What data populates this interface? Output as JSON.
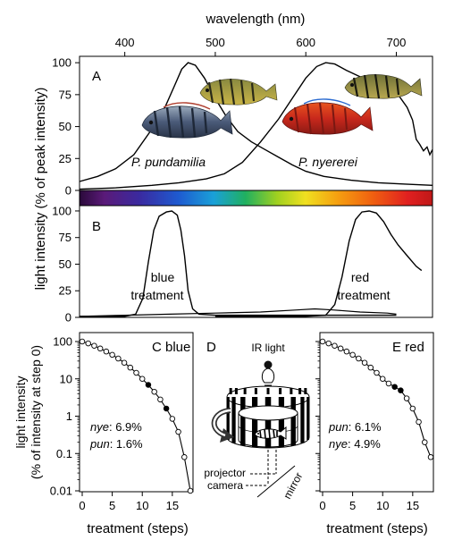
{
  "chart_data": [
    {
      "id": "A",
      "type": "line",
      "panel_label": "A",
      "xlabel": "wavelength (nm)",
      "xlim": [
        350,
        740
      ],
      "x_ticks": [
        400,
        500,
        600,
        700
      ],
      "ylim": [
        0,
        105
      ],
      "y_ticks": [
        0,
        25,
        50,
        75,
        100
      ],
      "series": [
        {
          "name": "P. pundamilia",
          "points": [
            [
              350,
              7
            ],
            [
              370,
              11
            ],
            [
              390,
              17
            ],
            [
              410,
              28
            ],
            [
              430,
              48
            ],
            [
              445,
              66
            ],
            [
              455,
              82
            ],
            [
              463,
              95
            ],
            [
              470,
              100
            ],
            [
              478,
              98
            ],
            [
              488,
              88
            ],
            [
              500,
              72
            ],
            [
              512,
              58
            ],
            [
              525,
              46
            ],
            [
              540,
              38
            ],
            [
              555,
              32
            ],
            [
              570,
              26
            ],
            [
              585,
              20
            ],
            [
              600,
              15
            ],
            [
              620,
              11
            ],
            [
              650,
              8
            ],
            [
              680,
              6
            ],
            [
              710,
              5
            ],
            [
              740,
              4
            ]
          ]
        },
        {
          "name": "P. nyererei",
          "points": [
            [
              350,
              1
            ],
            [
              390,
              2
            ],
            [
              430,
              4
            ],
            [
              460,
              6
            ],
            [
              490,
              9
            ],
            [
              510,
              13
            ],
            [
              530,
              22
            ],
            [
              550,
              38
            ],
            [
              570,
              56
            ],
            [
              585,
              72
            ],
            [
              600,
              88
            ],
            [
              612,
              97
            ],
            [
              622,
              100
            ],
            [
              632,
              99
            ],
            [
              645,
              94
            ],
            [
              660,
              89
            ],
            [
              675,
              84
            ],
            [
              690,
              79
            ],
            [
              703,
              74
            ],
            [
              712,
              65
            ],
            [
              718,
              55
            ],
            [
              722,
              40
            ],
            [
              726,
              36
            ],
            [
              730,
              31
            ],
            [
              734,
              34
            ],
            [
              737,
              28
            ],
            [
              740,
              32
            ]
          ]
        }
      ]
    },
    {
      "id": "B",
      "type": "line",
      "panel_label": "B",
      "ylim": [
        0,
        105
      ],
      "y_ticks": [
        0,
        25,
        50,
        75,
        100
      ],
      "series": [
        {
          "name": "blue treatment",
          "points": [
            [
              350,
              1
            ],
            [
              400,
              1
            ],
            [
              412,
              3
            ],
            [
              420,
              18
            ],
            [
              426,
              52
            ],
            [
              432,
              82
            ],
            [
              438,
              95
            ],
            [
              446,
              99
            ],
            [
              452,
              100
            ],
            [
              458,
              96
            ],
            [
              462,
              82
            ],
            [
              466,
              58
            ],
            [
              470,
              25
            ],
            [
              475,
              8
            ],
            [
              482,
              3
            ],
            [
              500,
              2
            ],
            [
              540,
              2
            ],
            [
              600,
              2
            ],
            [
              650,
              2
            ],
            [
              700,
              2
            ]
          ]
        },
        {
          "name": "red treatment",
          "points": [
            [
              500,
              1
            ],
            [
              560,
              1
            ],
            [
              600,
              1
            ],
            [
              622,
              2
            ],
            [
              632,
              12
            ],
            [
              640,
              38
            ],
            [
              648,
              72
            ],
            [
              655,
              92
            ],
            [
              662,
              99
            ],
            [
              670,
              100
            ],
            [
              678,
              98
            ],
            [
              686,
              90
            ],
            [
              694,
              78
            ],
            [
              702,
              68
            ],
            [
              712,
              58
            ],
            [
              722,
              48
            ],
            [
              728,
              44
            ]
          ]
        },
        {
          "name": "",
          "points": [
            [
              350,
              1
            ],
            [
              400,
              2
            ],
            [
              450,
              3
            ],
            [
              500,
              4
            ],
            [
              550,
              5
            ],
            [
              590,
              7
            ],
            [
              610,
              8
            ],
            [
              630,
              7
            ],
            [
              660,
              5
            ],
            [
              690,
              4
            ],
            [
              700,
              3
            ]
          ]
        }
      ],
      "annotations": [
        "blue",
        "treatment",
        "red",
        "treatment"
      ]
    },
    {
      "id": "C",
      "type": "line",
      "panel_label": "C blue",
      "xlabel": "treatment (steps)",
      "xlim": [
        0,
        18
      ],
      "x_ticks": [
        0,
        5,
        10,
        15
      ],
      "ylim": [
        0.01,
        100
      ],
      "y_scale": "log",
      "y_ticks": [
        "100",
        "10",
        "1",
        "0.1",
        "0.01"
      ],
      "values": [
        100,
        89,
        77,
        65,
        54,
        44,
        35,
        27,
        20,
        14.5,
        10,
        6.9,
        4.5,
        2.8,
        1.6,
        0.85,
        0.38,
        0.08,
        0.01
      ],
      "filled_steps": [
        11,
        14
      ],
      "legend": [
        {
          "species": "nye",
          "value": "6.9%"
        },
        {
          "species": "pun",
          "value": "1.6%"
        }
      ]
    },
    {
      "id": "E",
      "type": "line",
      "panel_label": "E red",
      "xlabel": "treatment (steps)",
      "xlim": [
        0,
        18
      ],
      "x_ticks": [
        0,
        5,
        10,
        15
      ],
      "ylim": [
        0.01,
        100
      ],
      "y_scale": "log",
      "values": [
        100,
        89,
        77,
        65,
        54,
        44,
        35,
        27,
        20,
        14.5,
        10,
        7.5,
        6.1,
        4.9,
        3.0,
        1.6,
        0.7,
        0.2,
        0.08
      ],
      "filled_steps": [
        12,
        13
      ],
      "legend": [
        {
          "species": "pun",
          "value": "6.1%"
        },
        {
          "species": "nye",
          "value": "4.9%"
        }
      ]
    }
  ],
  "labels": {
    "top_axis": "wavelength (nm)",
    "ylabel_AB": "light intensity (% of peak intensity)",
    "ylabel_CE_line1": "light intensity",
    "ylabel_CE_line2": "(% of intensity at step 0)",
    "species_pun": "P. pundamilia",
    "species_nye": "P. nyererei",
    "blue_line1": "blue",
    "blue_line2": "treatment",
    "red_line1": "red",
    "red_line2": "treatment",
    "panel_A": "A",
    "panel_B": "B",
    "panel_C": "C blue",
    "panel_D": "D",
    "panel_E": "E red",
    "c_leg1_sp": "nye",
    "c_leg1_val": ": 6.9%",
    "c_leg2_sp": "pun",
    "c_leg2_val": ": 1.6%",
    "e_leg1_sp": "pun",
    "e_leg1_val": ": 6.1%",
    "e_leg2_sp": "nye",
    "e_leg2_val": ": 4.9%",
    "xlabel_steps": "treatment (steps)",
    "d_ir": "IR light",
    "d_projector": "projector",
    "d_camera": "camera",
    "d_mirror": "mirror"
  },
  "colors": {
    "line": "#000000",
    "fish_pun_body": "#3d4a5c",
    "fish_pun_head": "#5b6f8c",
    "fish_nye_top": "#6b6d38",
    "fish_nye_red": "#c8281c",
    "fish_top_yellow": "#c9b447"
  }
}
